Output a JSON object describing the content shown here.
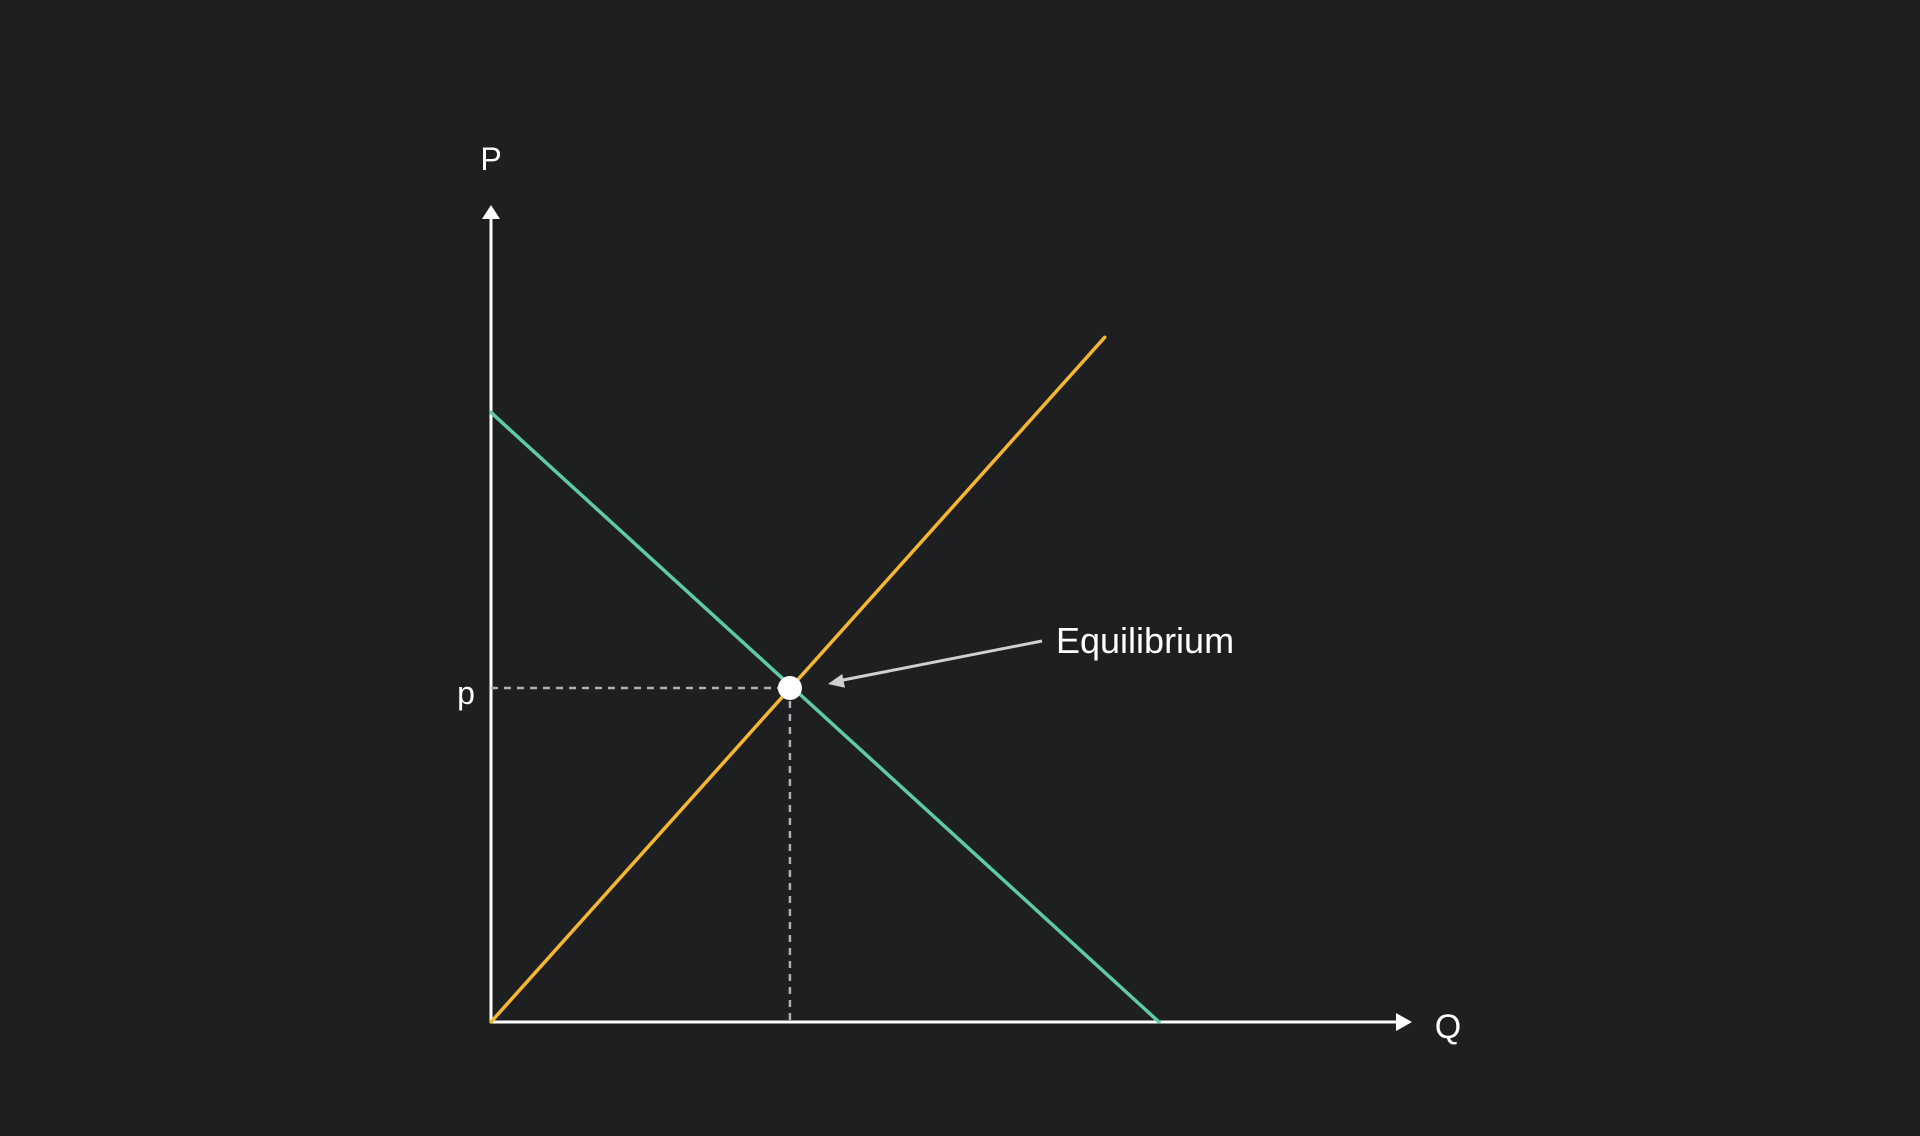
{
  "chart_data": {
    "type": "line",
    "xlabel": "Q",
    "ylabel": "P",
    "ytick_label": "p",
    "annotation": "Equilibrium",
    "xlim": [
      0,
      10
    ],
    "ylim": [
      0,
      10
    ],
    "series": [
      {
        "color": "#5ecba1",
        "points": [
          [
            0,
            7.3
          ],
          [
            8,
            0
          ]
        ]
      },
      {
        "color": "#f5b731",
        "points": [
          [
            0,
            0
          ],
          [
            7.35,
            8.2
          ]
        ]
      }
    ],
    "equilibrium": {
      "x": 3.58,
      "y": 4.0
    }
  },
  "colors": {
    "background": "#1e1f20",
    "axis": "#ffffff",
    "guide": "#b0b0b0",
    "arrow": "#d0d0d0"
  }
}
